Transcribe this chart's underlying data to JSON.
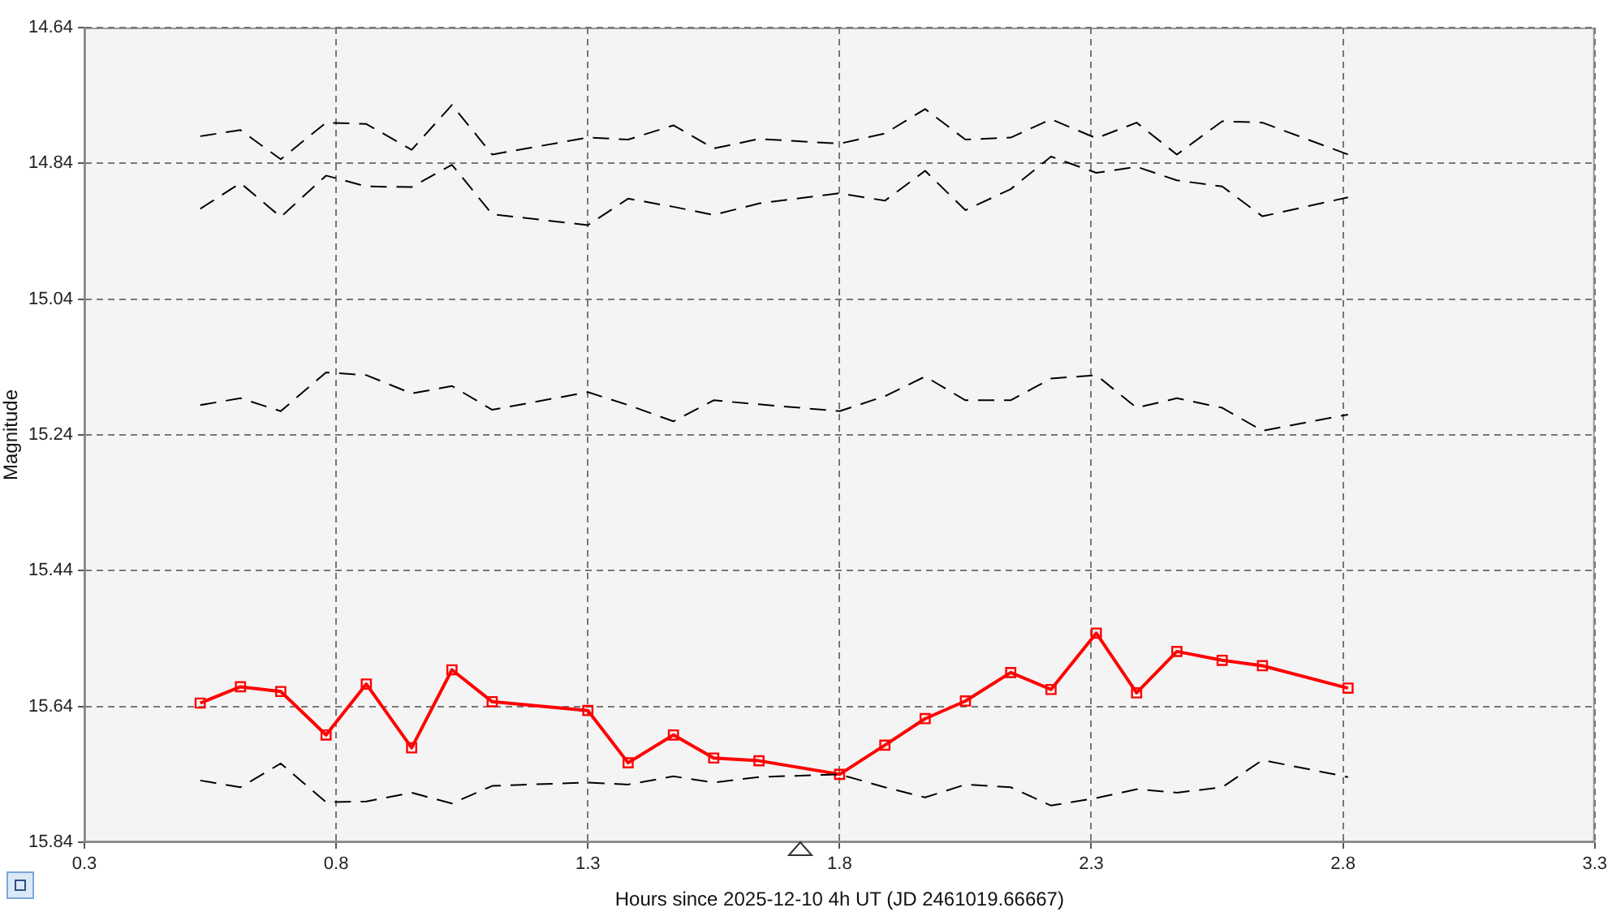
{
  "chart_data": {
    "type": "line",
    "xlabel": "Hours since 2025-12-10 4h UT (JD 2461019.66667)",
    "ylabel": "Magnitude",
    "x": [
      0.53,
      0.61,
      0.69,
      0.78,
      0.86,
      0.95,
      1.03,
      1.11,
      1.3,
      1.38,
      1.47,
      1.55,
      1.64,
      1.8,
      1.89,
      1.97,
      2.05,
      2.14,
      2.22,
      2.31,
      2.39,
      2.47,
      2.56,
      2.64,
      2.81
    ],
    "xlim": [
      0.3,
      3.3
    ],
    "xticks": [
      0.3,
      0.8,
      1.3,
      1.8,
      2.3,
      2.8,
      3.3
    ],
    "ylim": [
      15.84,
      14.64
    ],
    "yticks": [
      14.64,
      14.84,
      15.04,
      15.24,
      15.44,
      15.64,
      15.84
    ],
    "grid": true,
    "legend": false,
    "series": [
      {
        "type": "line",
        "color": "#000000",
        "marker": "none",
        "line_style": "dashed",
        "values": [
          14.8,
          14.791,
          14.834,
          14.78,
          14.782,
          14.82,
          14.754,
          14.827,
          14.802,
          14.805,
          14.784,
          14.818,
          14.804,
          14.811,
          14.796,
          14.76,
          14.805,
          14.802,
          14.775,
          14.803,
          14.78,
          14.827,
          14.778,
          14.78,
          14.827
        ]
      },
      {
        "type": "line",
        "color": "#000000",
        "marker": "none",
        "line_style": "dashed",
        "values": [
          14.907,
          14.869,
          14.919,
          14.858,
          14.874,
          14.875,
          14.842,
          14.915,
          14.931,
          14.892,
          14.904,
          14.916,
          14.899,
          14.884,
          14.895,
          14.851,
          14.909,
          14.878,
          14.83,
          14.854,
          14.845,
          14.865,
          14.874,
          14.918,
          14.89
        ]
      },
      {
        "type": "line",
        "color": "#000000",
        "marker": "none",
        "line_style": "dashed",
        "values": [
          15.196,
          15.186,
          15.205,
          15.148,
          15.152,
          15.179,
          15.168,
          15.203,
          15.177,
          15.196,
          15.22,
          15.189,
          15.195,
          15.205,
          15.183,
          15.154,
          15.189,
          15.189,
          15.157,
          15.152,
          15.2,
          15.186,
          15.2,
          15.234,
          15.21
        ]
      },
      {
        "type": "line",
        "color": "#000000",
        "marker": "none",
        "line_style": "dashed",
        "values": [
          15.749,
          15.759,
          15.724,
          15.781,
          15.78,
          15.767,
          15.783,
          15.757,
          15.752,
          15.755,
          15.743,
          15.752,
          15.744,
          15.74,
          15.759,
          15.774,
          15.755,
          15.759,
          15.786,
          15.775,
          15.762,
          15.767,
          15.759,
          15.719,
          15.744
        ]
      },
      {
        "color": "#ff0000",
        "marker": "square",
        "line_style": "solid",
        "values": [
          15.635,
          15.611,
          15.618,
          15.682,
          15.607,
          15.701,
          15.586,
          15.633,
          15.646,
          15.723,
          15.682,
          15.716,
          15.72,
          15.74,
          15.697,
          15.658,
          15.632,
          15.59,
          15.615,
          15.532,
          15.62,
          15.559,
          15.572,
          15.58,
          15.613
        ]
      }
    ]
  }
}
